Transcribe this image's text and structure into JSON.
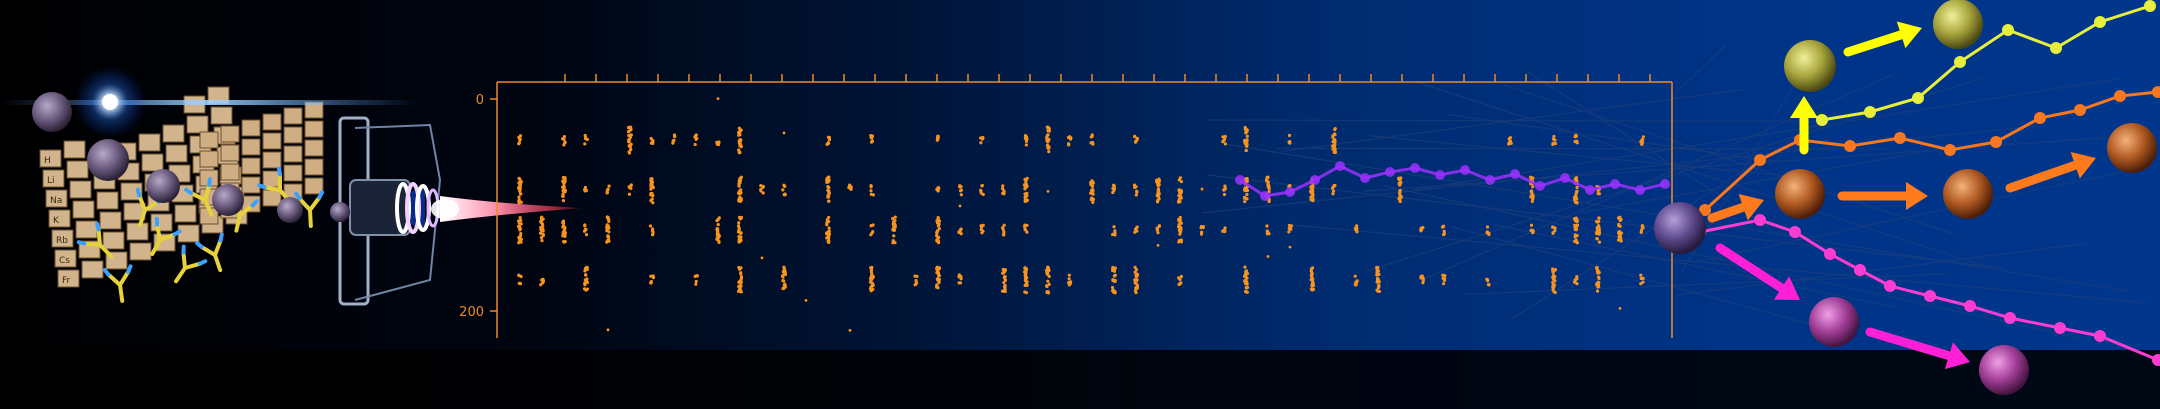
{
  "figure": {
    "axis": {
      "tick_labels": [
        "0",
        "200"
      ],
      "color": "#f08a24"
    },
    "periodic_table": {
      "visible_letters": [
        "H",
        "Li",
        "Na",
        "K",
        "Rb",
        "Cs",
        "Fr"
      ]
    },
    "colors": {
      "event_dots": "#f7931e",
      "trace_purple": "#9b30ff",
      "trace_yellow": "#e6f03c",
      "trace_orange": "#f7781e",
      "trace_magenta": "#ff3cd2",
      "arrow_yellow": "#ffff00",
      "arrow_orange": "#ff7a1a",
      "arrow_magenta": "#ff1fd6"
    },
    "icons": [
      "cell-sphere",
      "antibody-y",
      "plasma-torch",
      "lens-flare",
      "arrow"
    ]
  }
}
